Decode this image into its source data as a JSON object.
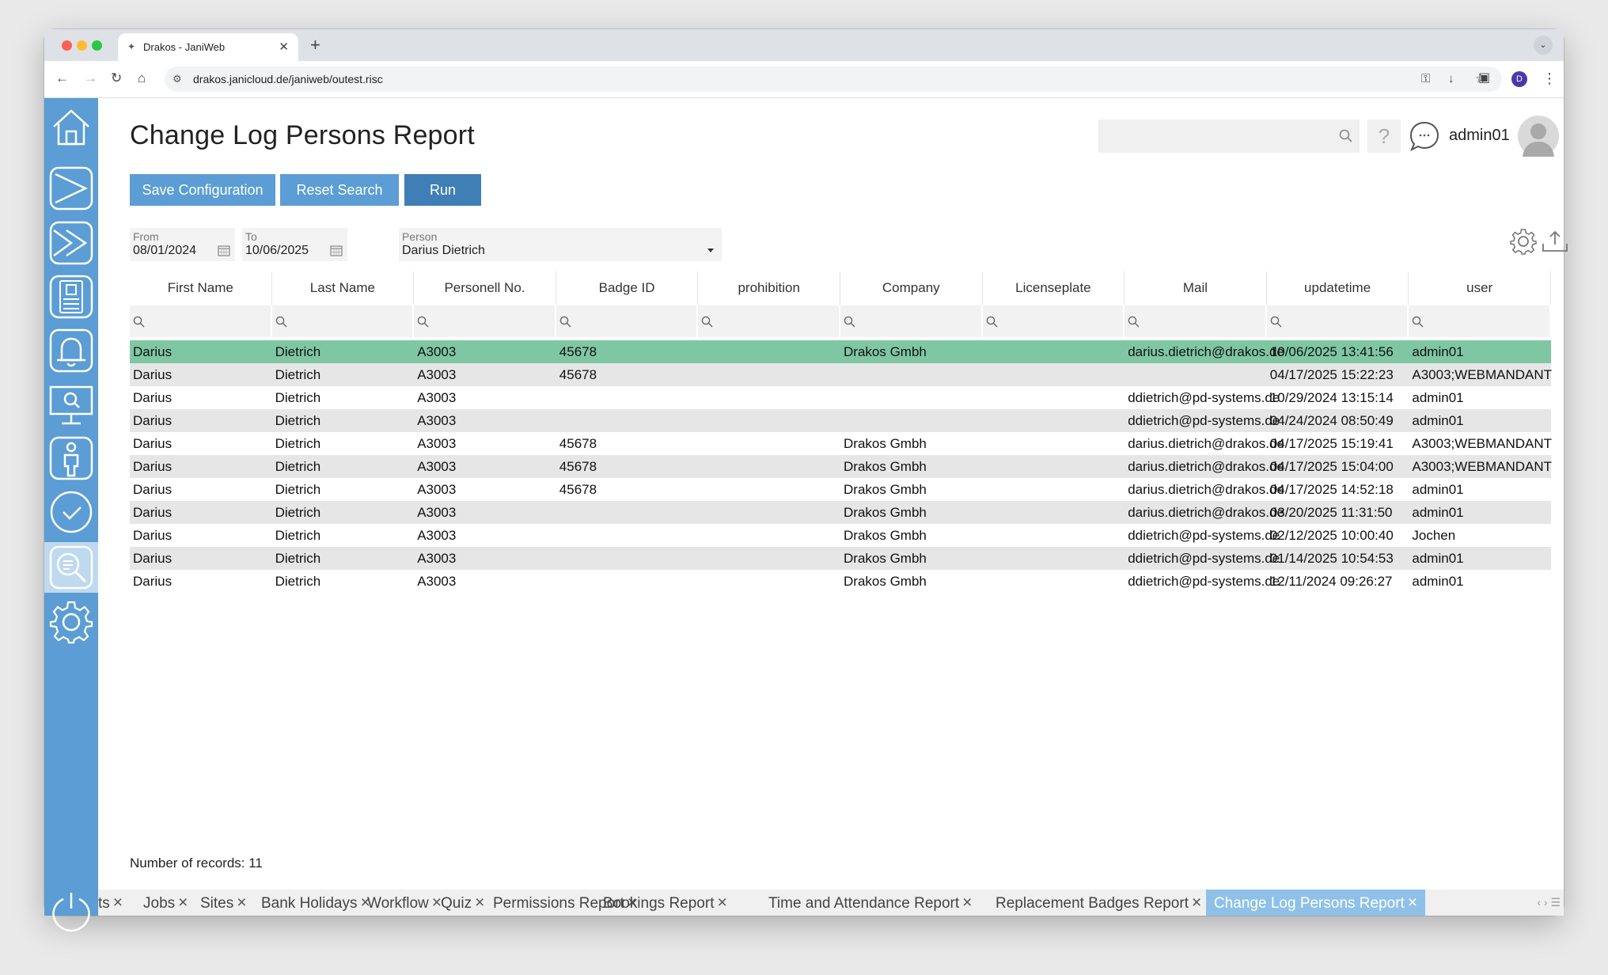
{
  "browser": {
    "tab_title": "Drakos - JaniWeb",
    "url": "drakos.janicloud.de/janiweb/outest.risc",
    "profile_initial": "D"
  },
  "page": {
    "title": "Change Log Persons Report",
    "user": "admin01"
  },
  "toolbar": {
    "save_label": "Save Configuration",
    "reset_label": "Reset Search",
    "run_label": "Run"
  },
  "filters": {
    "from_label": "From",
    "from_value": "08/01/2024",
    "to_label": "To",
    "to_value": "10/06/2025",
    "person_label": "Person",
    "person_value": "Darius Dietrich"
  },
  "table": {
    "columns": [
      "First Name",
      "Last Name",
      "Personell No.",
      "Badge ID",
      "prohibition",
      "Company",
      "Licenseplate",
      "Mail",
      "updatetime",
      "user"
    ],
    "rows": [
      [
        "Darius",
        "Dietrich",
        "A3003",
        "45678",
        "",
        "Drakos Gmbh",
        "",
        "darius.dietrich@drakos.de",
        "10/06/2025 13:41:56",
        "admin01"
      ],
      [
        "Darius",
        "Dietrich",
        "A3003",
        "45678",
        "",
        "",
        "",
        "",
        "04/17/2025 15:22:23",
        "A3003;WEBMANDANT"
      ],
      [
        "Darius",
        "Dietrich",
        "A3003",
        "",
        "",
        "",
        "",
        "ddietrich@pd-systems.de",
        "10/29/2024 13:15:14",
        "admin01"
      ],
      [
        "Darius",
        "Dietrich",
        "A3003",
        "",
        "",
        "",
        "",
        "ddietrich@pd-systems.de",
        "04/24/2024 08:50:49",
        "admin01"
      ],
      [
        "Darius",
        "Dietrich",
        "A3003",
        "45678",
        "",
        "Drakos Gmbh",
        "",
        "darius.dietrich@drakos.de",
        "04/17/2025 15:19:41",
        "A3003;WEBMANDANT"
      ],
      [
        "Darius",
        "Dietrich",
        "A3003",
        "45678",
        "",
        "Drakos Gmbh",
        "",
        "darius.dietrich@drakos.de",
        "04/17/2025 15:04:00",
        "A3003;WEBMANDANT"
      ],
      [
        "Darius",
        "Dietrich",
        "A3003",
        "45678",
        "",
        "Drakos Gmbh",
        "",
        "darius.dietrich@drakos.de",
        "04/17/2025 14:52:18",
        "admin01"
      ],
      [
        "Darius",
        "Dietrich",
        "A3003",
        "",
        "",
        "Drakos Gmbh",
        "",
        "darius.dietrich@drakos.de",
        "03/20/2025 11:31:50",
        "admin01"
      ],
      [
        "Darius",
        "Dietrich",
        "A3003",
        "",
        "",
        "Drakos Gmbh",
        "",
        "ddietrich@pd-systems.de",
        "02/12/2025 10:00:40",
        "Jochen"
      ],
      [
        "Darius",
        "Dietrich",
        "A3003",
        "",
        "",
        "Drakos Gmbh",
        "",
        "ddietrich@pd-systems.de",
        "01/14/2025 10:54:53",
        "admin01"
      ],
      [
        "Darius",
        "Dietrich",
        "A3003",
        "",
        "",
        "Drakos Gmbh",
        "",
        "ddietrich@pd-systems.de",
        "12/11/2024 09:26:27",
        "admin01"
      ]
    ],
    "selected_row": 0,
    "record_count": "Number of records: 11"
  },
  "bottom_tabs": [
    {
      "label": "ts",
      "active": false
    },
    {
      "label": "Jobs",
      "active": false
    },
    {
      "label": "Sites",
      "active": false
    },
    {
      "label": "Bank Holidays",
      "active": false
    },
    {
      "label": "Workflow",
      "active": false
    },
    {
      "label": "Quiz",
      "active": false
    },
    {
      "label": "Permissions Report",
      "active": false
    },
    {
      "label": "Bookings Report",
      "active": false
    },
    {
      "label": "Time and Attendance Report",
      "active": false
    },
    {
      "label": "Replacement Badges Report",
      "active": false
    },
    {
      "label": "Change Log Persons Report",
      "active": true
    }
  ],
  "sidebar": {
    "items": [
      "home-icon",
      "send-icon",
      "send-all-icon",
      "badge-card-icon",
      "bell-icon",
      "monitor-search-icon",
      "person-icon",
      "clock-icon",
      "report-search-icon",
      "settings-icon"
    ],
    "active_item": "report-search-icon"
  },
  "colors": {
    "sidebar": "#5b9dd4",
    "button": "#5b9dd4",
    "run_button": "#3f7fb5",
    "selected_row": "#7fc7a3",
    "active_tab": "#8fc1e8"
  }
}
